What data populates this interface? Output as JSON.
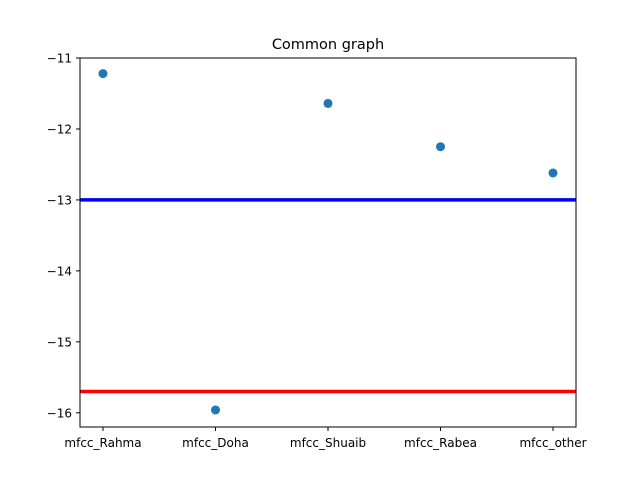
{
  "chart_data": {
    "type": "scatter",
    "title": "Common graph",
    "xlabel": "",
    "ylabel": "",
    "categories": [
      "mfcc_Rahma",
      "mfcc_Doha",
      "mfcc_Shuaib",
      "mfcc_Rabea",
      "mfcc_other"
    ],
    "series": [
      {
        "values": [
          -11.22,
          -15.96,
          -11.64,
          -12.25,
          -12.62
        ],
        "color": "#1f77b4"
      }
    ],
    "hlines": [
      {
        "y": -13.0,
        "color": "#0000ff"
      },
      {
        "y": -15.7,
        "color": "#ff0000"
      }
    ],
    "ylim": [
      -16.2,
      -11.0
    ],
    "yticks": [
      -11,
      -12,
      -13,
      -14,
      -15,
      -16
    ],
    "ytick_labels": [
      "−11",
      "−12",
      "−13",
      "−14",
      "−15",
      "−16"
    ],
    "grid": false,
    "legend": "none"
  }
}
